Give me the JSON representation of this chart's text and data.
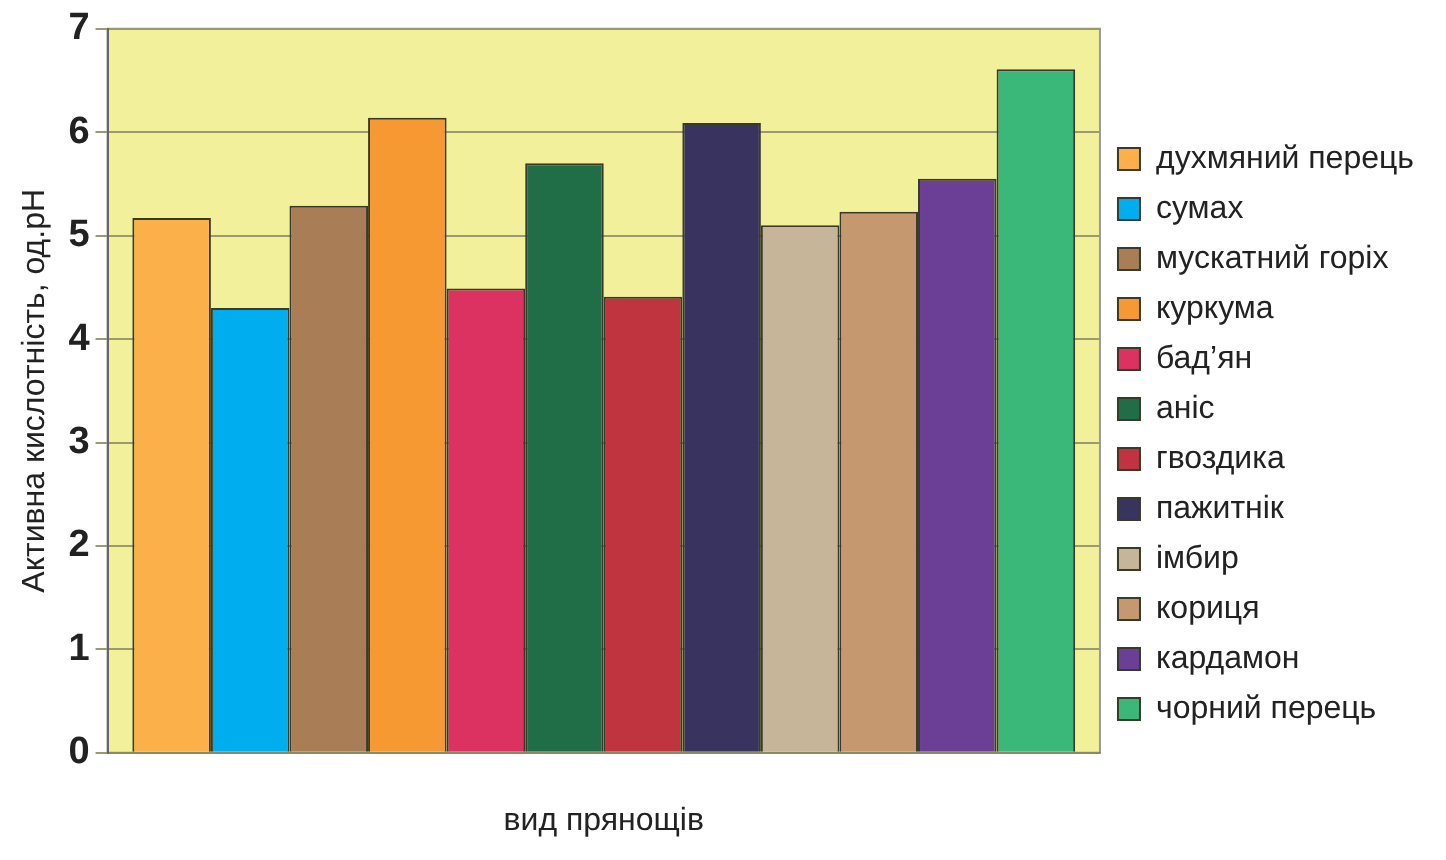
{
  "chart_data": {
    "type": "bar",
    "xlabel": "вид прянощів",
    "ylabel": "Активна кислотність, од.рН",
    "categories": [
      null
    ],
    "series": [
      {
        "name": "духмяний перець",
        "color": "#fbb04a",
        "values": [
          5.17
        ]
      },
      {
        "name": "сумах",
        "color": "#00aeef",
        "values": [
          4.3
        ]
      },
      {
        "name": "мускатний горіх",
        "color": "#a97d56",
        "values": [
          5.29
        ]
      },
      {
        "name": "куркума",
        "color": "#f79932",
        "values": [
          6.14
        ]
      },
      {
        "name": "бад’ян",
        "color": "#db3262",
        "values": [
          4.49
        ]
      },
      {
        "name": "аніс",
        "color": "#206e47",
        "values": [
          5.7
        ]
      },
      {
        "name": "гвоздика",
        "color": "#c0343f",
        "values": [
          4.41
        ]
      },
      {
        "name": "пажитнік",
        "color": "#38335f",
        "values": [
          6.09
        ]
      },
      {
        "name": "імбир",
        "color": "#c6b599",
        "values": [
          5.1
        ]
      },
      {
        "name": "кориця",
        "color": "#c69870",
        "values": [
          5.23
        ]
      },
      {
        "name": "кардамон",
        "color": "#6b3f96",
        "values": [
          5.55
        ]
      },
      {
        "name": "чорний перець",
        "color": "#3ab87a",
        "values": [
          6.61
        ]
      }
    ],
    "ylim": [
      0,
      7
    ],
    "yticks": [
      0,
      1,
      2,
      3,
      4,
      5,
      6,
      7
    ],
    "grid": "y",
    "legend": "right"
  }
}
